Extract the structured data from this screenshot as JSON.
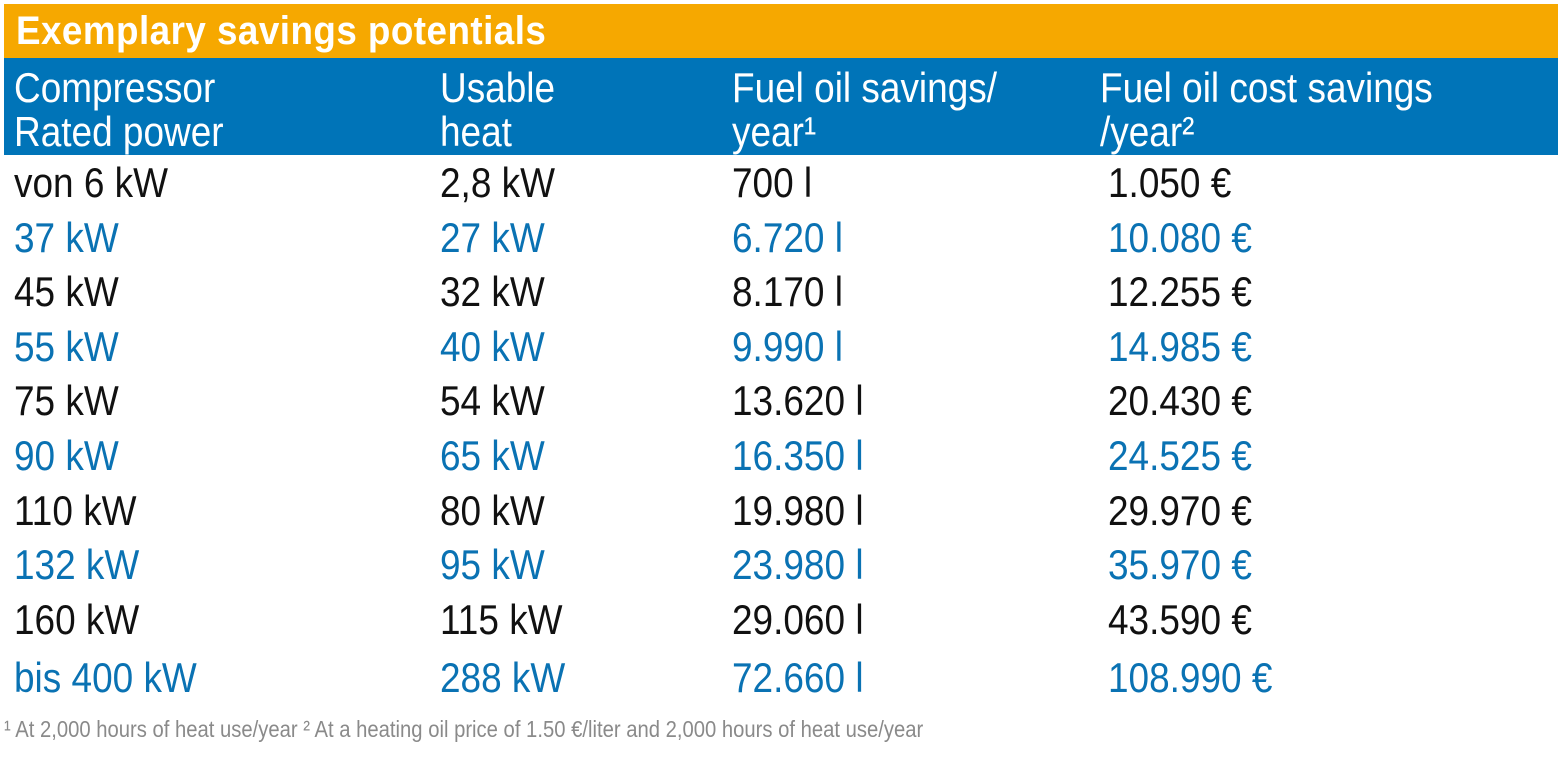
{
  "title": "Exemplary savings potentials",
  "header": {
    "col1": [
      "Compressor",
      "Rated power"
    ],
    "col2": [
      "Usable",
      "heat"
    ],
    "col3": [
      "Fuel oil savings/",
      "year¹"
    ],
    "col4": [
      "Fuel oil cost savings",
      "/year²"
    ]
  },
  "rows": [
    {
      "power": "von 6 kW",
      "heat": "2,8 kW",
      "oil": "700 l",
      "cost": "1.050 €"
    },
    {
      "power": "37 kW",
      "heat": "27 kW",
      "oil": "6.720 l",
      "cost": "10.080 €"
    },
    {
      "power": "45 kW",
      "heat": "32 kW",
      "oil": "8.170 l",
      "cost": "12.255 €"
    },
    {
      "power": "55 kW",
      "heat": "40 kW",
      "oil": "9.990 l",
      "cost": "14.985 €"
    },
    {
      "power": "75 kW",
      "heat": "54 kW",
      "oil": "13.620 l",
      "cost": "20.430 €"
    },
    {
      "power": "90 kW",
      "heat": "65 kW",
      "oil": "16.350 l",
      "cost": "24.525 €"
    },
    {
      "power": "110 kW",
      "heat": "80 kW",
      "oil": "19.980 l",
      "cost": "29.970 €"
    },
    {
      "power": "132 kW",
      "heat": "95 kW",
      "oil": "23.980 l",
      "cost": "35.970 €"
    },
    {
      "power": "160 kW",
      "heat": "115 kW",
      "oil": "29.060 l",
      "cost": "43.590 €"
    },
    {
      "power": "bis 400 kW",
      "heat": "288 kW",
      "oil": "72.660 l",
      "cost": "108.990 €"
    }
  ],
  "footnote": "¹ At 2,000 hours of heat use/year ² At a heating oil price of 1.50 €/liter and 2,000 hours of heat use/year",
  "colors": {
    "title_bg": "#f6a800",
    "header_bg": "#0074b8",
    "row_text_dark": "#111111",
    "row_text_blue": "#0a72b3",
    "footnote_text": "#8a8a8a"
  }
}
